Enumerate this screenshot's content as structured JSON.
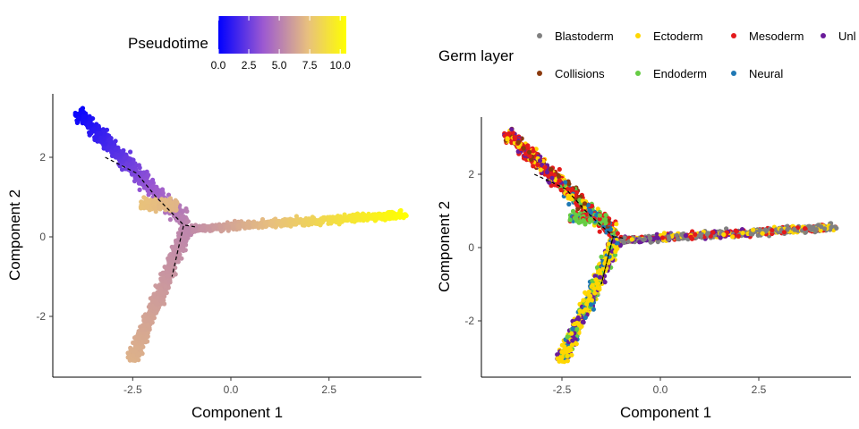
{
  "chart_data": [
    {
      "type": "scatter",
      "panel": "left",
      "xlabel": "Component 1",
      "ylabel": "Component 2",
      "xlim": [
        -4.35,
        4.9
      ],
      "ylim": [
        -3.5,
        3.5
      ],
      "x_ticks": [
        -2.5,
        0.0,
        2.5
      ],
      "x_tick_labels": [
        "-2.5",
        "0.0",
        "2.5"
      ],
      "y_ticks": [
        -2,
        0,
        2
      ],
      "y_tick_labels": [
        "-2",
        "0",
        "2"
      ],
      "grid": false,
      "color_scale": {
        "title": "Pseudotime",
        "min": 0,
        "max": 10.5,
        "ticks": [
          0,
          2.5,
          5,
          7.5,
          10
        ],
        "tick_labels": [
          "0.0",
          "2.5",
          "5.0",
          "7.5",
          "10.0"
        ],
        "colors": [
          "#0000ff",
          "#9c59d1",
          "#e8c07e",
          "#ffff00"
        ]
      },
      "legend_position": "top",
      "branches": [
        {
          "name": "top-left",
          "x_range": [
            -3.9,
            -1.1
          ],
          "y_range": [
            3.2,
            0.3
          ]
        },
        {
          "name": "bottom",
          "x_range": [
            -1.1,
            -2.5
          ],
          "y_range": [
            0.3,
            -3.1
          ]
        },
        {
          "name": "right",
          "x_range": [
            -1.1,
            4.4
          ],
          "y_range": [
            0.2,
            0.55
          ]
        },
        {
          "name": "small-left",
          "x_range": [
            -1.4,
            -2.3
          ],
          "y_range": [
            0.8,
            0.85
          ]
        }
      ],
      "trajectory": [
        [
          -3.2,
          2.0
        ],
        [
          -2.4,
          1.6
        ],
        [
          -1.9,
          1.0
        ],
        [
          -1.2,
          0.3
        ],
        [
          -1.5,
          -1.0
        ],
        [
          -1.2,
          0.3
        ],
        [
          -0.9,
          0.25
        ]
      ]
    },
    {
      "type": "scatter",
      "panel": "right",
      "xlabel": "Component 1",
      "ylabel": "Component 2",
      "xlim": [
        -4.35,
        4.9
      ],
      "ylim": [
        -3.5,
        3.5
      ],
      "x_ticks": [
        -2.5,
        0.0,
        2.5
      ],
      "x_tick_labels": [
        "-2.5",
        "0.0",
        "2.5"
      ],
      "y_ticks": [
        -2,
        0,
        2
      ],
      "y_tick_labels": [
        "-2",
        "0",
        "2"
      ],
      "grid": false,
      "legend_position": "top",
      "legend": {
        "title": "Germ layer",
        "series": [
          {
            "name": "Blastoderm",
            "color": "#808080"
          },
          {
            "name": "Ectoderm",
            "color": "#ffd700"
          },
          {
            "name": "Mesoderm",
            "color": "#e41a1c"
          },
          {
            "name": "Unl",
            "color": "#6a1b9a"
          },
          {
            "name": "Collisions",
            "color": "#8b3a0e"
          },
          {
            "name": "Endoderm",
            "color": "#66cc44"
          },
          {
            "name": "Neural",
            "color": "#1f78b4"
          }
        ]
      }
    }
  ]
}
